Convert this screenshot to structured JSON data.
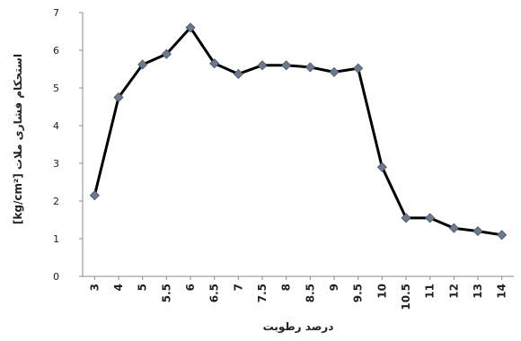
{
  "chart_data": {
    "type": "line",
    "x": [
      "3",
      "4",
      "5",
      "5.5",
      "6",
      "6.5",
      "7",
      "7.5",
      "8",
      "8.5",
      "9",
      "9.5",
      "10",
      "10.5",
      "11",
      "12",
      "13",
      "14"
    ],
    "series": [
      {
        "values": [
          2.15,
          4.75,
          5.62,
          5.9,
          6.6,
          5.65,
          5.37,
          5.6,
          5.6,
          5.55,
          5.42,
          5.52,
          2.9,
          1.55,
          1.55,
          1.28,
          1.2,
          1.1
        ]
      }
    ],
    "ylim": [
      0,
      7
    ],
    "y_ticks": [
      "0",
      "1",
      "2",
      "3",
      "4",
      "5",
      "6",
      "7"
    ],
    "xlabel": "درصد رطوبت",
    "ylabel": "[kg/cm²] استحکام فشاری ملات",
    "grid": false,
    "line_color": "#000000",
    "marker_color": "#6b7a8f"
  }
}
